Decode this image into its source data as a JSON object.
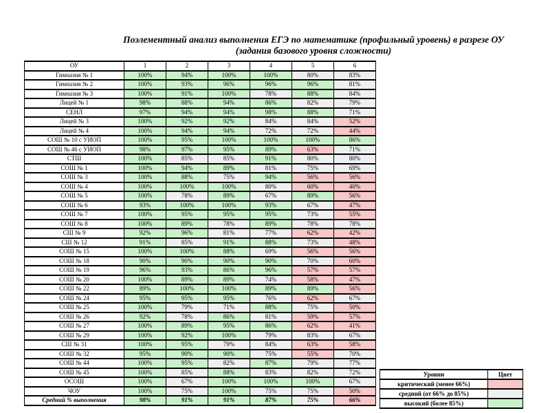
{
  "title": {
    "line1": "Поэлементный анализ выполнения ЕГЭ по математике (профильный уровень) в разрезе ОУ",
    "line2": "(задания базового уровня сложности)"
  },
  "colors": {
    "high": "#c9f1c9",
    "medium": "#efefef",
    "critical": "#f8c7c7",
    "border": "#000000"
  },
  "table": {
    "headers": [
      "ОУ",
      "1",
      "2",
      "3",
      "4",
      "5",
      "6"
    ],
    "rows": [
      {
        "name": "Гимназия № 1",
        "values": [
          "100%",
          "94%",
          "100%",
          "100%",
          "80%",
          "83%"
        ],
        "levels": [
          "h",
          "h",
          "h",
          "h",
          "m",
          "m"
        ]
      },
      {
        "name": "Гимназия № 2",
        "values": [
          "100%",
          "93%",
          "96%",
          "96%",
          "96%",
          "81%"
        ],
        "levels": [
          "h",
          "h",
          "h",
          "h",
          "h",
          "m"
        ]
      },
      {
        "name": "Гимназия № 3",
        "values": [
          "100%",
          "91%",
          "100%",
          "78%",
          "88%",
          "84%"
        ],
        "levels": [
          "h",
          "h",
          "h",
          "m",
          "h",
          "m"
        ]
      },
      {
        "name": "Лицей № 1",
        "values": [
          "98%",
          "88%",
          "94%",
          "86%",
          "82%",
          "79%"
        ],
        "levels": [
          "h",
          "h",
          "h",
          "h",
          "m",
          "m"
        ]
      },
      {
        "name": "СЕНЛ",
        "values": [
          "97%",
          "94%",
          "94%",
          "98%",
          "88%",
          "71%"
        ],
        "levels": [
          "h",
          "h",
          "h",
          "h",
          "h",
          "m"
        ]
      },
      {
        "name": "Лицей № 3",
        "values": [
          "100%",
          "92%",
          "92%",
          "84%",
          "84%",
          "52%"
        ],
        "levels": [
          "h",
          "h",
          "h",
          "m",
          "m",
          "c"
        ]
      },
      {
        "name": "Лицей № 4",
        "values": [
          "100%",
          "94%",
          "94%",
          "72%",
          "72%",
          "44%"
        ],
        "levels": [
          "h",
          "h",
          "h",
          "m",
          "m",
          "c"
        ]
      },
      {
        "name": "СОШ № 10 с УИОП",
        "values": [
          "100%",
          "95%",
          "100%",
          "100%",
          "100%",
          "86%"
        ],
        "levels": [
          "h",
          "h",
          "h",
          "h",
          "h",
          "h"
        ]
      },
      {
        "name": "СОШ № 46 с УИОП",
        "values": [
          "98%",
          "97%",
          "95%",
          "89%",
          "63%",
          "71%"
        ],
        "levels": [
          "h",
          "h",
          "h",
          "h",
          "c",
          "m"
        ]
      },
      {
        "name": "СТШ",
        "values": [
          "100%",
          "85%",
          "85%",
          "91%",
          "80%",
          "80%"
        ],
        "levels": [
          "h",
          "m",
          "m",
          "h",
          "m",
          "m"
        ]
      },
      {
        "name": "СОШ № 1",
        "values": [
          "100%",
          "94%",
          "89%",
          "81%",
          "75%",
          "69%"
        ],
        "levels": [
          "h",
          "h",
          "h",
          "m",
          "m",
          "m"
        ]
      },
      {
        "name": "СОШ № 3",
        "values": [
          "100%",
          "88%",
          "75%",
          "94%",
          "56%",
          "56%"
        ],
        "levels": [
          "h",
          "h",
          "m",
          "h",
          "c",
          "c"
        ]
      },
      {
        "name": "СОШ № 4",
        "values": [
          "100%",
          "100%",
          "100%",
          "80%",
          "60%",
          "40%"
        ],
        "levels": [
          "h",
          "h",
          "h",
          "m",
          "c",
          "c"
        ]
      },
      {
        "name": "СОШ № 5",
        "values": [
          "100%",
          "78%",
          "89%",
          "67%",
          "89%",
          "56%"
        ],
        "levels": [
          "h",
          "m",
          "h",
          "m",
          "h",
          "c"
        ]
      },
      {
        "name": "СОШ № 6",
        "values": [
          "93%",
          "100%",
          "100%",
          "93%",
          "67%",
          "47%"
        ],
        "levels": [
          "h",
          "h",
          "h",
          "h",
          "m",
          "c"
        ]
      },
      {
        "name": "СОШ № 7",
        "values": [
          "100%",
          "95%",
          "95%",
          "95%",
          "73%",
          "55%"
        ],
        "levels": [
          "h",
          "h",
          "h",
          "h",
          "m",
          "c"
        ]
      },
      {
        "name": "СОШ № 8",
        "values": [
          "100%",
          "89%",
          "78%",
          "89%",
          "78%",
          "78%"
        ],
        "levels": [
          "h",
          "h",
          "m",
          "h",
          "m",
          "m"
        ]
      },
      {
        "name": "СШ № 9",
        "values": [
          "92%",
          "96%",
          "81%",
          "77%",
          "62%",
          "42%"
        ],
        "levels": [
          "h",
          "h",
          "m",
          "m",
          "c",
          "c"
        ]
      },
      {
        "name": "СШ № 12",
        "values": [
          "91%",
          "85%",
          "91%",
          "88%",
          "73%",
          "48%"
        ],
        "levels": [
          "h",
          "m",
          "h",
          "h",
          "m",
          "c"
        ]
      },
      {
        "name": "СОШ № 15",
        "values": [
          "100%",
          "100%",
          "88%",
          "69%",
          "56%",
          "56%"
        ],
        "levels": [
          "h",
          "h",
          "h",
          "m",
          "c",
          "c"
        ]
      },
      {
        "name": "СОШ № 18",
        "values": [
          "90%",
          "90%",
          "90%",
          "90%",
          "70%",
          "60%"
        ],
        "levels": [
          "h",
          "h",
          "h",
          "h",
          "m",
          "c"
        ]
      },
      {
        "name": "СОШ № 19",
        "values": [
          "96%",
          "93%",
          "86%",
          "96%",
          "57%",
          "57%"
        ],
        "levels": [
          "h",
          "h",
          "h",
          "h",
          "c",
          "c"
        ]
      },
      {
        "name": "СОШ № 20",
        "values": [
          "100%",
          "89%",
          "89%",
          "74%",
          "58%",
          "47%"
        ],
        "levels": [
          "h",
          "h",
          "h",
          "m",
          "c",
          "c"
        ]
      },
      {
        "name": "СОШ № 22",
        "values": [
          "89%",
          "100%",
          "100%",
          "89%",
          "89%",
          "56%"
        ],
        "levels": [
          "h",
          "h",
          "h",
          "h",
          "h",
          "c"
        ]
      },
      {
        "name": "СОШ № 24",
        "values": [
          "95%",
          "95%",
          "95%",
          "76%",
          "62%",
          "67%"
        ],
        "levels": [
          "h",
          "h",
          "h",
          "m",
          "c",
          "m"
        ]
      },
      {
        "name": "СОШ № 25",
        "values": [
          "100%",
          "79%",
          "71%",
          "88%",
          "75%",
          "50%"
        ],
        "levels": [
          "h",
          "m",
          "m",
          "h",
          "m",
          "c"
        ]
      },
      {
        "name": "СОШ № 26",
        "values": [
          "92%",
          "78%",
          "86%",
          "81%",
          "59%",
          "57%"
        ],
        "levels": [
          "h",
          "m",
          "h",
          "m",
          "c",
          "c"
        ]
      },
      {
        "name": "СОШ № 27",
        "values": [
          "100%",
          "89%",
          "95%",
          "86%",
          "62%",
          "41%"
        ],
        "levels": [
          "h",
          "h",
          "h",
          "h",
          "c",
          "c"
        ]
      },
      {
        "name": "СОШ № 29",
        "values": [
          "100%",
          "92%",
          "100%",
          "79%",
          "83%",
          "67%"
        ],
        "levels": [
          "h",
          "h",
          "h",
          "m",
          "m",
          "m"
        ]
      },
      {
        "name": "СШ № 31",
        "values": [
          "100%",
          "95%",
          "79%",
          "84%",
          "63%",
          "58%"
        ],
        "levels": [
          "h",
          "h",
          "m",
          "m",
          "c",
          "c"
        ]
      },
      {
        "name": "СОШ № 32",
        "values": [
          "95%",
          "90%",
          "90%",
          "75%",
          "55%",
          "70%"
        ],
        "levels": [
          "h",
          "h",
          "h",
          "m",
          "c",
          "m"
        ]
      },
      {
        "name": "СОШ № 44",
        "values": [
          "100%",
          "95%",
          "82%",
          "87%",
          "79%",
          "77%"
        ],
        "levels": [
          "h",
          "h",
          "m",
          "h",
          "m",
          "m"
        ]
      },
      {
        "name": "СОШ № 45",
        "values": [
          "100%",
          "85%",
          "88%",
          "83%",
          "82%",
          "72%"
        ],
        "levels": [
          "h",
          "m",
          "h",
          "m",
          "m",
          "m"
        ]
      },
      {
        "name": "ОСОШ",
        "values": [
          "100%",
          "67%",
          "100%",
          "100%",
          "100%",
          "67%"
        ],
        "levels": [
          "h",
          "m",
          "h",
          "h",
          "h",
          "m"
        ]
      },
      {
        "name": "ЧОУ",
        "values": [
          "100%",
          "75%",
          "100%",
          "75%",
          "75%",
          "50%"
        ],
        "levels": [
          "h",
          "m",
          "h",
          "m",
          "m",
          "c"
        ]
      },
      {
        "name": "Средний % выполнения",
        "values": [
          "98%",
          "91%",
          "91%",
          "87%",
          "75%",
          "66%"
        ],
        "levels": [
          "h",
          "h",
          "h",
          "h",
          "m",
          "c"
        ],
        "bold": true
      }
    ]
  },
  "legend": {
    "headers": [
      "Уровни",
      "Цвет"
    ],
    "rows": [
      {
        "label": "критический (менее 66%)",
        "level": "c"
      },
      {
        "label": "средний (от 66% до 85%)",
        "level": "m"
      },
      {
        "label": "высокий (более 85%)",
        "level": "h"
      }
    ]
  }
}
